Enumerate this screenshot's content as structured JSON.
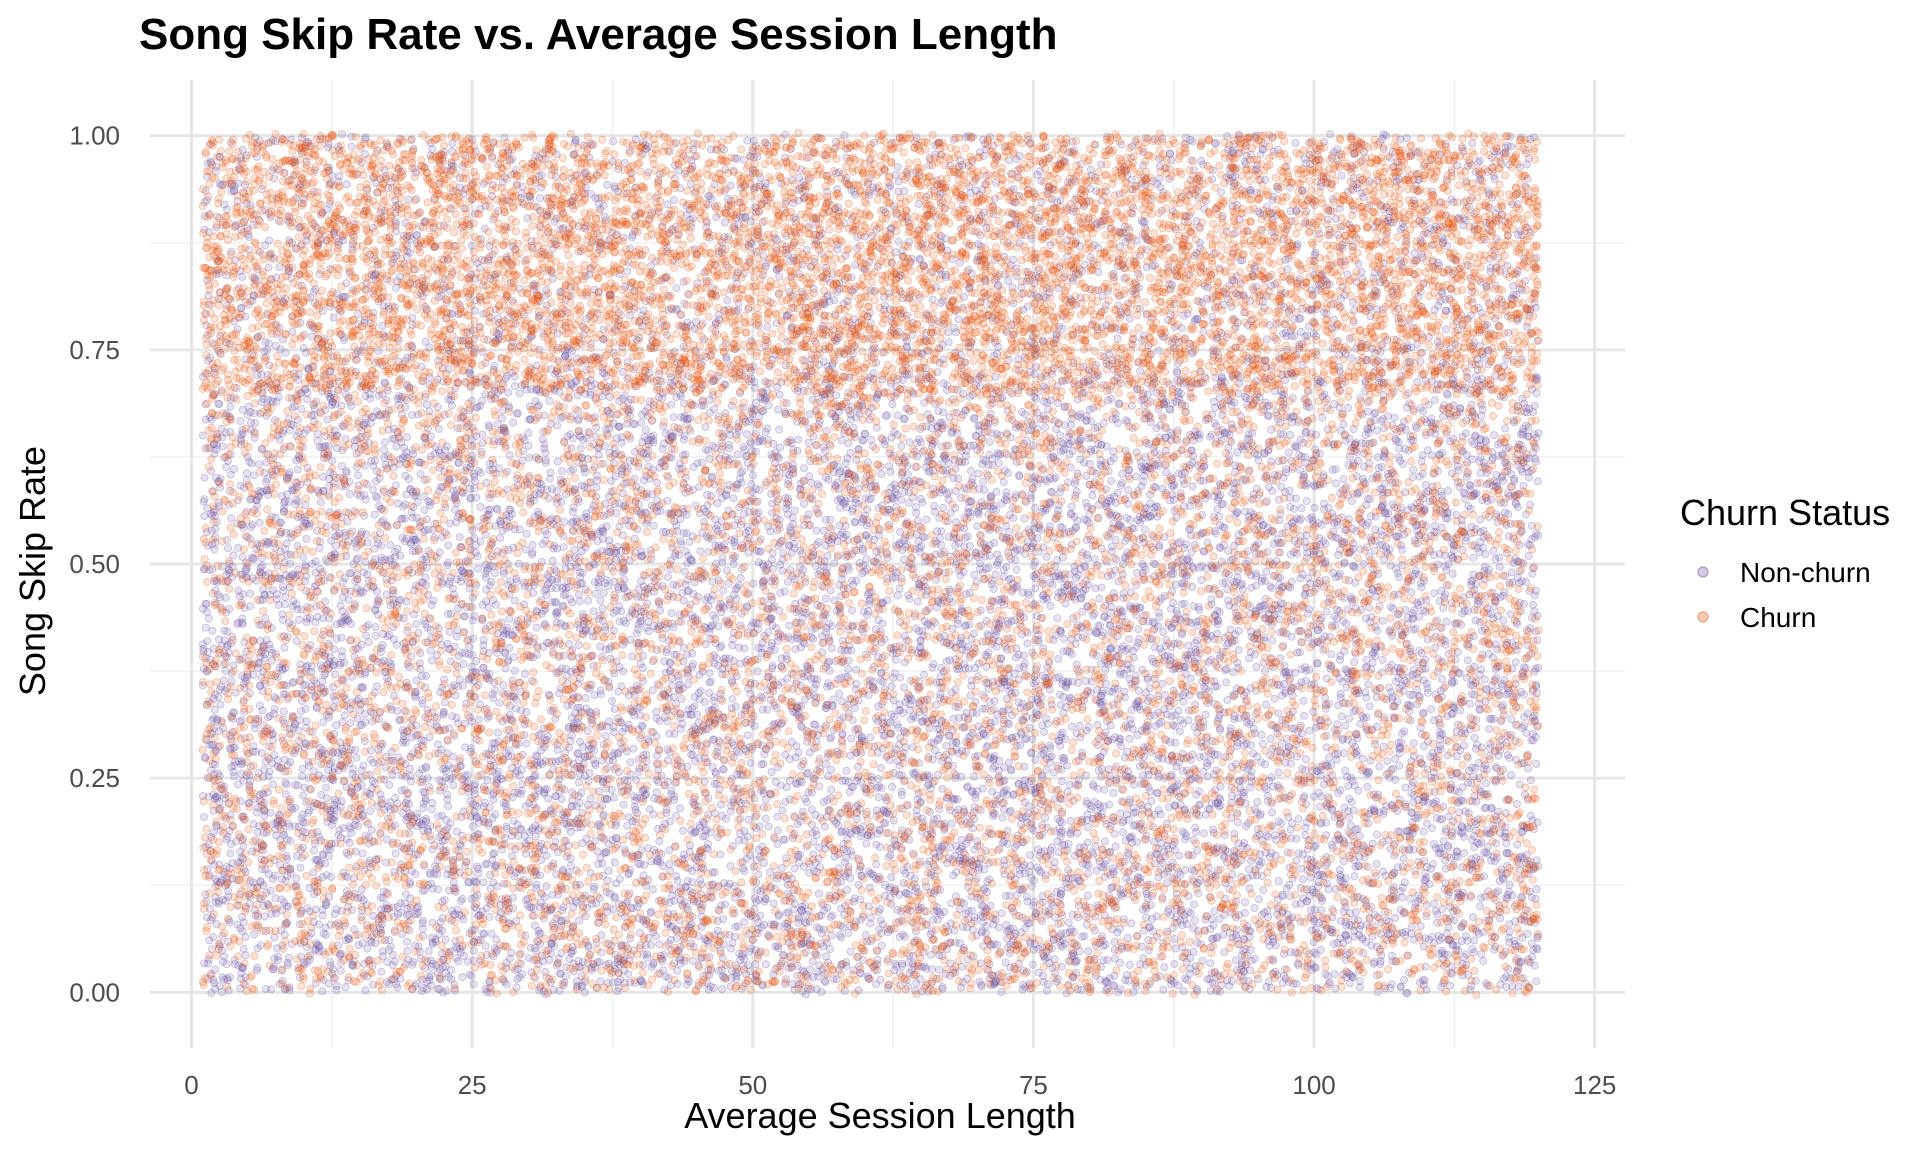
{
  "chart_data": {
    "type": "scatter",
    "title": "Song Skip Rate vs. Average Session Length",
    "xlabel": "Average Session Length",
    "ylabel": "Song Skip Rate",
    "xlim": [
      -3.7,
      127.7
    ],
    "ylim": [
      -0.065,
      1.065
    ],
    "x_ticks": [
      0,
      25,
      50,
      75,
      100,
      125
    ],
    "x_tick_labels": [
      "0",
      "25",
      "50",
      "75",
      "100",
      "125"
    ],
    "y_ticks": [
      0,
      0.25,
      0.5,
      0.75,
      1.0
    ],
    "y_tick_labels": [
      "0.00",
      "0.25",
      "0.50",
      "0.75",
      "1.00"
    ],
    "grid": true,
    "legend": {
      "title": "Churn Status",
      "position": "right"
    },
    "series": [
      {
        "name": "Non-churn",
        "color": "#6a51a3",
        "x_range": [
          1,
          120
        ],
        "y_range": [
          0,
          1
        ],
        "density": "uniform, denser at lower skip rates",
        "points": [
          [
            1,
            0.05
          ],
          [
            30,
            0.45
          ],
          [
            60,
            0.6
          ],
          [
            90,
            0.3
          ],
          [
            120,
            0.5
          ],
          [
            15,
            0.2
          ],
          [
            105,
            0.15
          ],
          [
            75,
            0.4
          ]
        ]
      },
      {
        "name": "Churn",
        "color": "#e6550d",
        "x_range": [
          1,
          120
        ],
        "y_range": [
          0,
          1
        ],
        "density": "uniform, denser at higher skip rates (above 0.7)",
        "points": [
          [
            1,
            0.9
          ],
          [
            30,
            0.85
          ],
          [
            60,
            0.8
          ],
          [
            90,
            0.95
          ],
          [
            120,
            0.75
          ],
          [
            15,
            0.3
          ],
          [
            105,
            0.05
          ],
          [
            75,
            0.6
          ]
        ]
      }
    ]
  }
}
